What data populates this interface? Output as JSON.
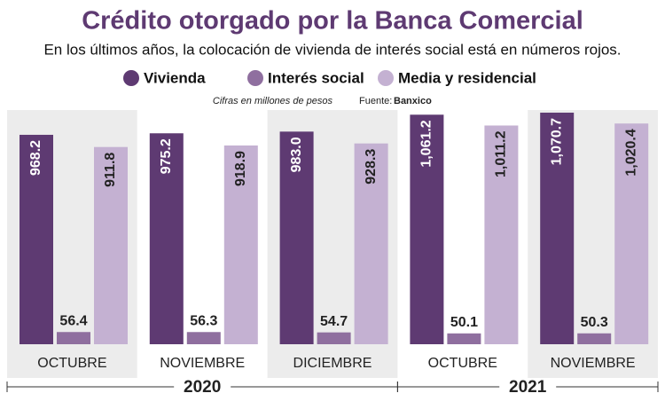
{
  "chart_data": {
    "type": "bar",
    "title": "Crédito otorgado por la Banca Comercial",
    "subtitle": "En los últimos años, la colocación de vivienda de interés social está en números rojos.",
    "note": "Cifras en millones de pesos",
    "source_label": "Fuente:",
    "source": "Banxico",
    "groups": [
      {
        "name": "2020",
        "categories": [
          "OCTUBRE",
          "NOVIEMBRE",
          "DICIEMBRE"
        ]
      },
      {
        "name": "2021",
        "categories": [
          "OCTUBRE",
          "NOVIEMBRE"
        ]
      }
    ],
    "series": [
      {
        "name": "Vivienda",
        "color": "#5e3a72",
        "values": [
          968.2,
          975.2,
          983.0,
          1061.2,
          1070.7
        ],
        "value_labels": [
          "968.2",
          "975.2",
          "983.0",
          "1,061.2",
          "1,070.7"
        ]
      },
      {
        "name": "Interés social",
        "color": "#8f6f9f",
        "values": [
          56.4,
          56.3,
          54.7,
          50.1,
          50.3
        ],
        "value_labels": [
          "56.4",
          "56.3",
          "54.7",
          "50.1",
          "50.3"
        ]
      },
      {
        "name": "Media y residencial",
        "color": "#c4b1d2",
        "values": [
          911.8,
          918.9,
          928.3,
          1011.2,
          1020.4
        ],
        "value_labels": [
          "911.8",
          "918.9",
          "928.3",
          "1,011.2",
          "1,020.4"
        ]
      }
    ]
  }
}
